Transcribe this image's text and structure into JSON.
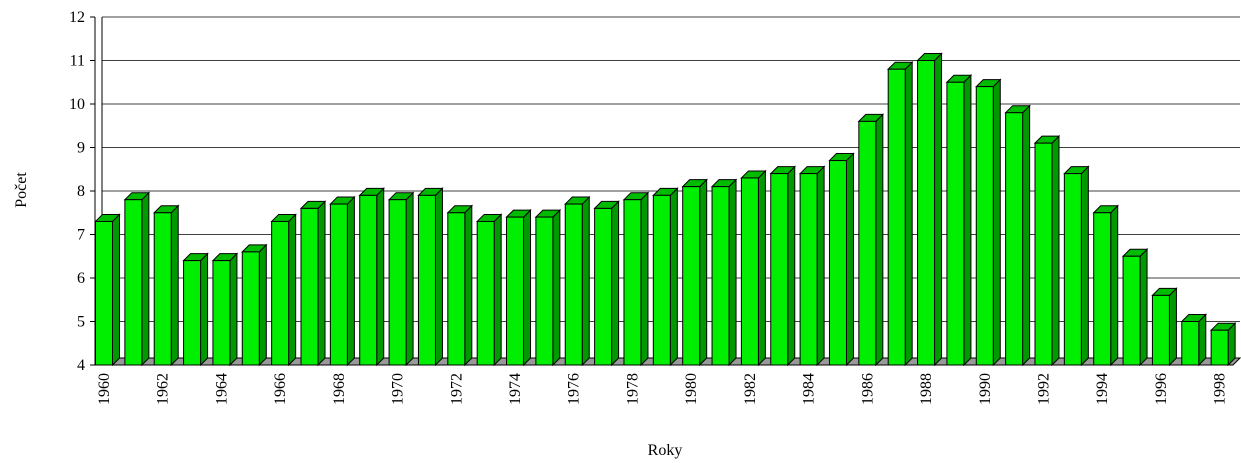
{
  "chart_data": {
    "type": "bar3d",
    "x_label": "Roky",
    "y_label": "Počet",
    "categories": [
      "1960",
      null,
      "1962",
      null,
      "1964",
      null,
      "1966",
      null,
      "1968",
      null,
      "1970",
      null,
      "1972",
      null,
      "1974",
      null,
      "1976",
      null,
      "1978",
      null,
      "1980",
      null,
      "1982",
      null,
      "1984",
      null,
      "1986",
      null,
      "1988",
      null,
      "1990",
      null,
      "1992",
      null,
      "1994",
      null,
      "1996",
      null,
      "1998"
    ],
    "values": [
      7.3,
      7.8,
      7.5,
      6.4,
      6.4,
      6.6,
      7.3,
      7.6,
      7.7,
      7.9,
      7.8,
      7.9,
      7.5,
      7.3,
      7.4,
      7.4,
      7.7,
      7.6,
      7.8,
      7.9,
      8.1,
      8.1,
      8.3,
      8.4,
      8.4,
      8.7,
      9.6,
      10.8,
      11.0,
      10.5,
      10.4,
      9.8,
      9.1,
      8.4,
      7.5,
      6.5,
      5.6,
      5.0,
      4.8
    ],
    "color": "#00ee00",
    "ylim": [
      4,
      12
    ],
    "yticks": [
      4,
      5,
      6,
      7,
      8,
      9,
      10,
      11,
      12
    ],
    "grid": true
  }
}
